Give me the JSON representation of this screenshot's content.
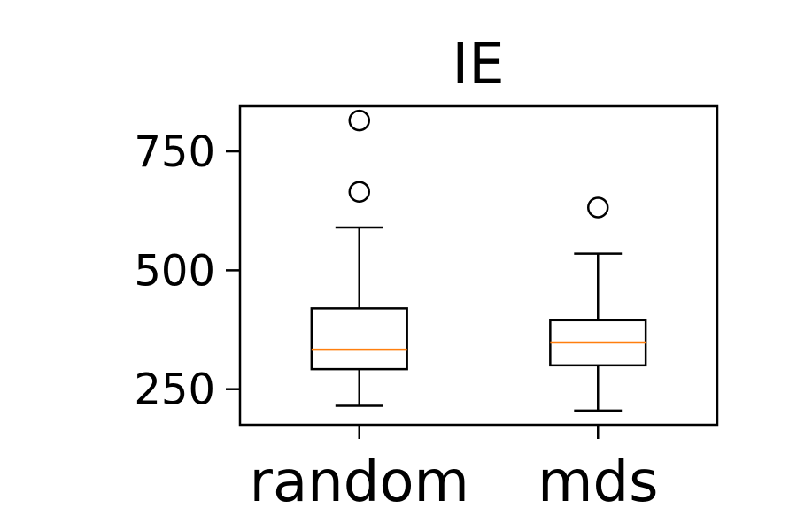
{
  "chart_data": {
    "type": "boxplot",
    "title": "IE",
    "xlabel": "",
    "ylabel": "",
    "ylim": [
      175,
      845
    ],
    "yticks": [
      250,
      500,
      750
    ],
    "categories": [
      "random",
      "mds"
    ],
    "boxes": [
      {
        "category": "random",
        "whisker_low": 215,
        "q1": 292,
        "median": 333,
        "q3": 420,
        "whisker_high": 590,
        "outliers": [
          665,
          815
        ]
      },
      {
        "category": "mds",
        "whisker_low": 205,
        "q1": 300,
        "median": 348,
        "q3": 395,
        "whisker_high": 535,
        "outliers": [
          632
        ]
      }
    ],
    "colors": {
      "box": "#000000",
      "median": "#ff7f0e",
      "outlier": "#000000"
    },
    "grid": false
  }
}
